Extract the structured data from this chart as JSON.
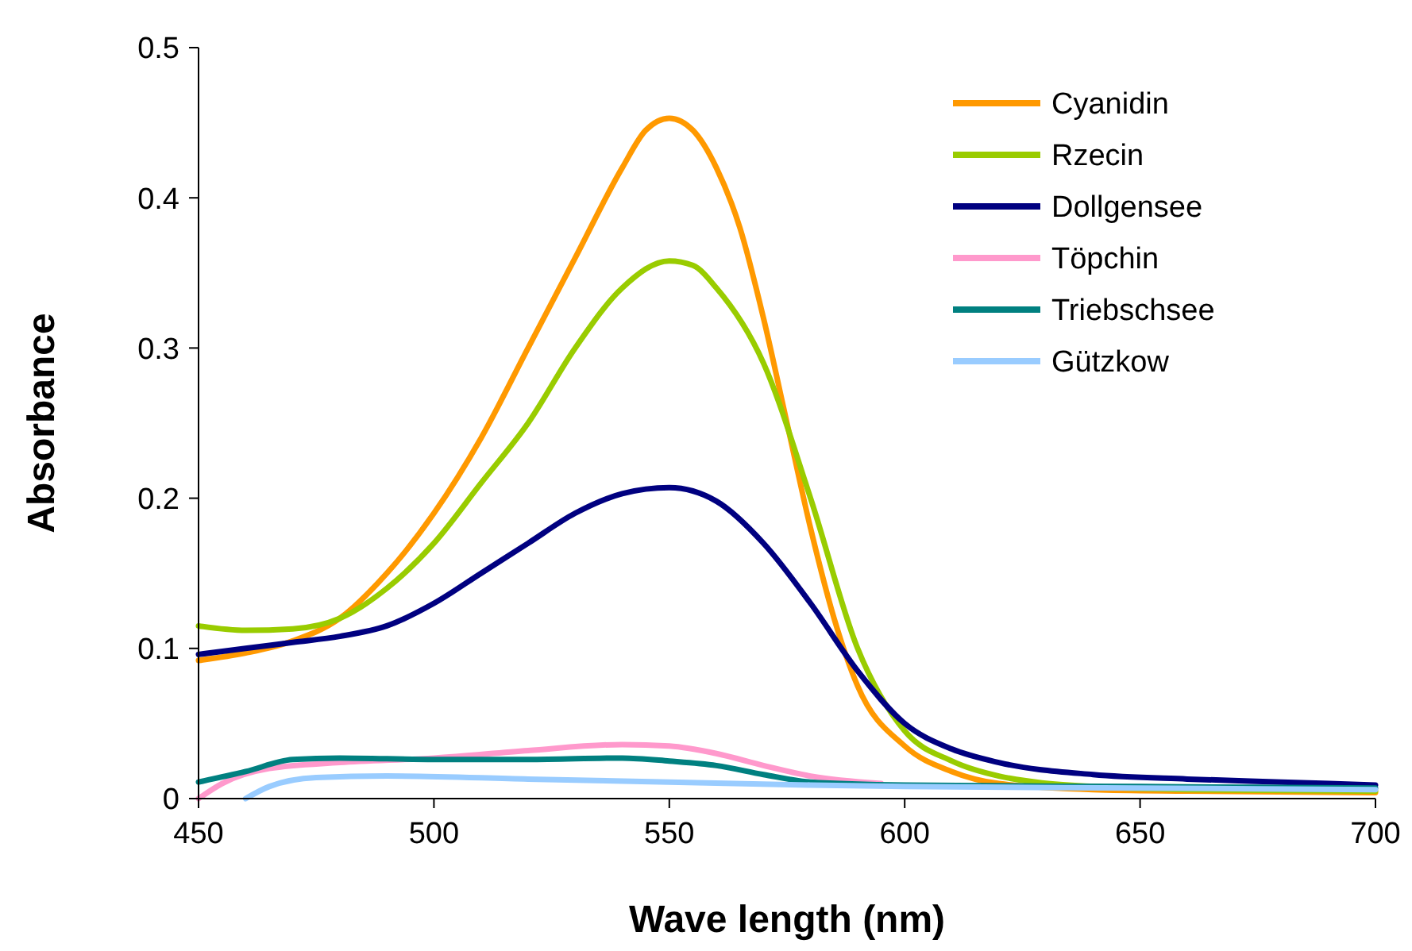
{
  "chart_data": {
    "type": "line",
    "xlabel": "Wave length (nm)",
    "ylabel": "Absorbance",
    "xlim": [
      450,
      700
    ],
    "xticks": [
      450,
      500,
      550,
      600,
      650,
      700
    ],
    "ylim": [
      0,
      0.5
    ],
    "yticks": [
      0,
      0.1,
      0.2,
      0.3,
      0.4,
      0.5
    ],
    "grid": false,
    "legend": "top right",
    "marker": "none",
    "line_style": "solid",
    "series": [
      {
        "name": "Cyanidin",
        "color": "#ff9900",
        "x": [
          450,
          460,
          470,
          480,
          490,
          500,
          510,
          520,
          530,
          540,
          545,
          550,
          555,
          560,
          565,
          570,
          575,
          580,
          585,
          590,
          600,
          610,
          620,
          640,
          660,
          700
        ],
        "values": [
          0.092,
          0.097,
          0.105,
          0.12,
          0.15,
          0.19,
          0.24,
          0.3,
          0.36,
          0.42,
          0.445,
          0.453,
          0.445,
          0.42,
          0.38,
          0.32,
          0.25,
          0.18,
          0.12,
          0.075,
          0.035,
          0.018,
          0.01,
          0.006,
          0.005,
          0.004
        ]
      },
      {
        "name": "Rzecin",
        "color": "#99cc00",
        "x": [
          450,
          460,
          470,
          480,
          490,
          500,
          510,
          520,
          530,
          540,
          550,
          555,
          560,
          570,
          580,
          590,
          600,
          610,
          620,
          640,
          660,
          700
        ],
        "values": [
          0.115,
          0.112,
          0.113,
          0.12,
          0.14,
          0.17,
          0.21,
          0.25,
          0.3,
          0.34,
          0.358,
          0.355,
          0.34,
          0.29,
          0.2,
          0.1,
          0.045,
          0.025,
          0.015,
          0.008,
          0.006,
          0.005
        ]
      },
      {
        "name": "Dollgensee",
        "color": "#000080",
        "x": [
          450,
          460,
          470,
          480,
          490,
          500,
          510,
          520,
          530,
          540,
          550,
          560,
          570,
          580,
          590,
          600,
          610,
          620,
          640,
          660,
          680,
          700
        ],
        "values": [
          0.096,
          0.1,
          0.104,
          0.108,
          0.115,
          0.13,
          0.15,
          0.17,
          0.19,
          0.203,
          0.207,
          0.198,
          0.17,
          0.13,
          0.085,
          0.05,
          0.033,
          0.024,
          0.016,
          0.013,
          0.011,
          0.009
        ]
      },
      {
        "name": "Töpchin",
        "color": "#ff99cc",
        "x": [
          450,
          455,
          465,
          480,
          500,
          520,
          540,
          550,
          560,
          570,
          580,
          595
        ],
        "values": [
          0,
          0.01,
          0.02,
          0.024,
          0.027,
          0.032,
          0.036,
          0.035,
          0.03,
          0.022,
          0.015,
          0.01
        ]
      },
      {
        "name": "Triebschsee",
        "color": "#008080",
        "x": [
          450,
          460,
          470,
          480,
          500,
          520,
          540,
          550,
          560,
          570,
          580,
          600,
          650,
          700
        ],
        "values": [
          0.011,
          0.018,
          0.026,
          0.027,
          0.026,
          0.026,
          0.027,
          0.025,
          0.022,
          0.016,
          0.011,
          0.009,
          0.008,
          0.007
        ]
      },
      {
        "name": "Gützkow",
        "color": "#99ccff",
        "x": [
          460,
          465,
          475,
          490,
          520,
          550,
          580,
          600,
          650,
          700
        ],
        "values": [
          0,
          0.008,
          0.014,
          0.015,
          0.013,
          0.011,
          0.009,
          0.008,
          0.007,
          0.006
        ]
      }
    ]
  }
}
